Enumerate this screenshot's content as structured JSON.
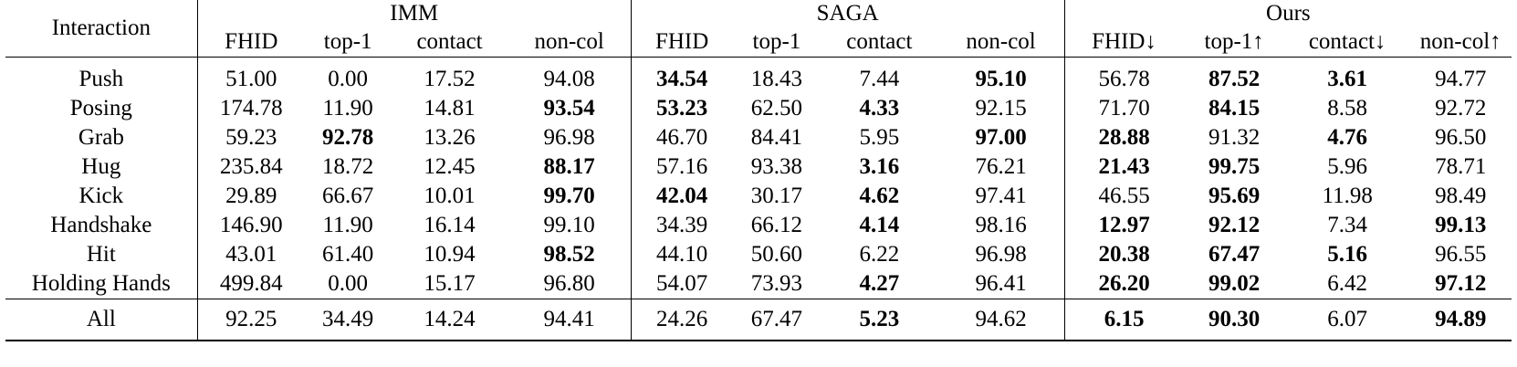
{
  "header": {
    "interaction_label": "Interaction",
    "groups": [
      "IMM",
      "SAGA",
      "Ours"
    ],
    "imm_cols": [
      "FHID",
      "top-1",
      "contact",
      "non-col"
    ],
    "saga_cols": [
      "FHID",
      "top-1",
      "contact",
      "non-col"
    ],
    "ours_cols": [
      "FHID↓",
      "top-1↑",
      "contact↓",
      "non-col↑"
    ]
  },
  "rows": [
    {
      "name": "Push",
      "v": [
        "51.00",
        "0.00",
        "17.52",
        "94.08",
        "34.54",
        "18.43",
        "7.44",
        "95.10",
        "56.78",
        "87.52",
        "3.61",
        "94.77"
      ],
      "bold": [
        4,
        7,
        9,
        10
      ]
    },
    {
      "name": "Posing",
      "v": [
        "174.78",
        "11.90",
        "14.81",
        "93.54",
        "53.23",
        "62.50",
        "4.33",
        "92.15",
        "71.70",
        "84.15",
        "8.58",
        "92.72"
      ],
      "bold": [
        3,
        4,
        6,
        9
      ]
    },
    {
      "name": "Grab",
      "v": [
        "59.23",
        "92.78",
        "13.26",
        "96.98",
        "46.70",
        "84.41",
        "5.95",
        "97.00",
        "28.88",
        "91.32",
        "4.76",
        "96.50"
      ],
      "bold": [
        1,
        7,
        8,
        10
      ]
    },
    {
      "name": "Hug",
      "v": [
        "235.84",
        "18.72",
        "12.45",
        "88.17",
        "57.16",
        "93.38",
        "3.16",
        "76.21",
        "21.43",
        "99.75",
        "5.96",
        "78.71"
      ],
      "bold": [
        3,
        6,
        8,
        9
      ]
    },
    {
      "name": "Kick",
      "v": [
        "29.89",
        "66.67",
        "10.01",
        "99.70",
        "42.04",
        "30.17",
        "4.62",
        "97.41",
        "46.55",
        "95.69",
        "11.98",
        "98.49"
      ],
      "bold": [
        3,
        4,
        6,
        9
      ]
    },
    {
      "name": "Handshake",
      "v": [
        "146.90",
        "11.90",
        "16.14",
        "99.10",
        "34.39",
        "66.12",
        "4.14",
        "98.16",
        "12.97",
        "92.12",
        "7.34",
        "99.13"
      ],
      "bold": [
        6,
        8,
        9,
        11
      ]
    },
    {
      "name": "Hit",
      "v": [
        "43.01",
        "61.40",
        "10.94",
        "98.52",
        "44.10",
        "50.60",
        "6.22",
        "96.98",
        "20.38",
        "67.47",
        "5.16",
        "96.55"
      ],
      "bold": [
        3,
        8,
        9,
        10
      ]
    },
    {
      "name": "Holding Hands",
      "v": [
        "499.84",
        "0.00",
        "15.17",
        "96.80",
        "54.07",
        "73.93",
        "4.27",
        "96.41",
        "26.20",
        "99.02",
        "6.42",
        "97.12"
      ],
      "bold": [
        6,
        8,
        9,
        11
      ]
    }
  ],
  "summary": {
    "name": "All",
    "v": [
      "92.25",
      "34.49",
      "14.24",
      "94.41",
      "24.26",
      "67.47",
      "5.23",
      "94.62",
      "6.15",
      "90.30",
      "6.07",
      "94.89"
    ],
    "bold": [
      6,
      8,
      9,
      11
    ]
  }
}
